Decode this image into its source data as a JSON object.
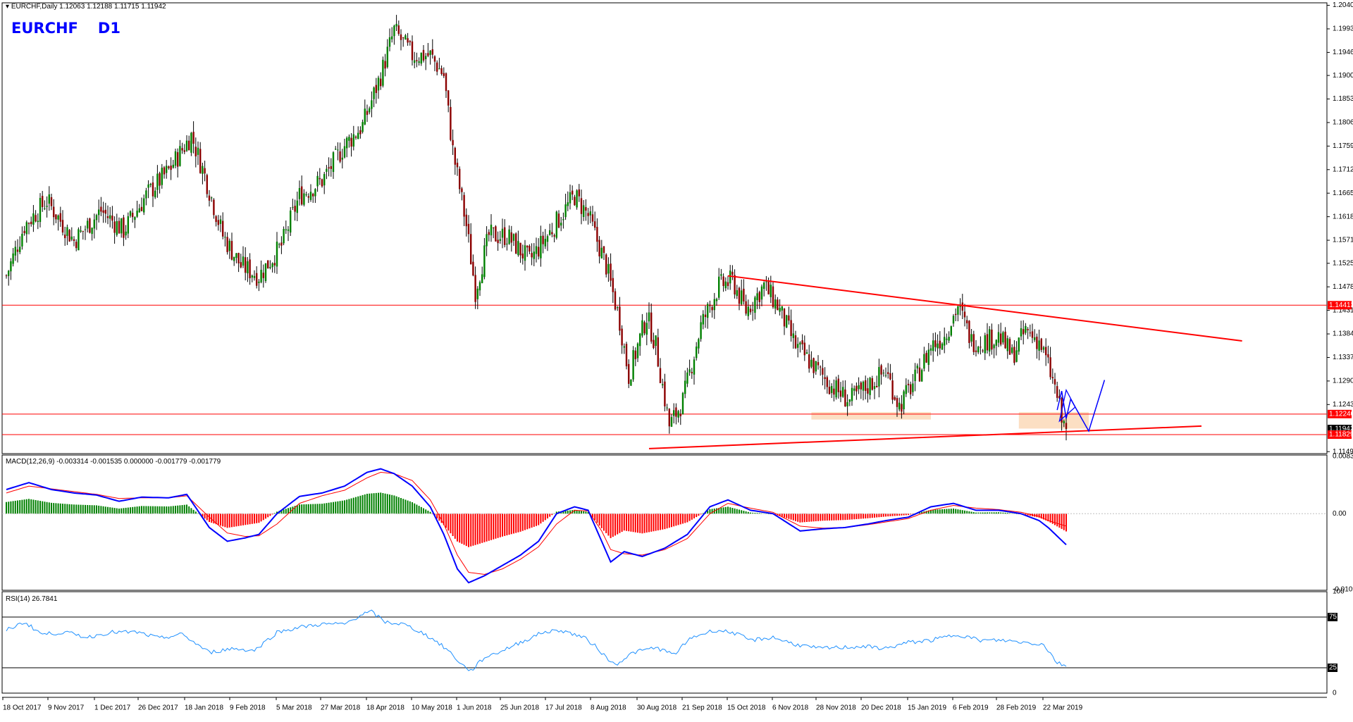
{
  "header": {
    "ohlc_text": "EURCHF,Daily  1.12063 1.12188 1.11715 1.11942",
    "symbol": "EURCHF",
    "timeframe": "D1"
  },
  "colors": {
    "bull": "#008000",
    "bear": "#8b0000",
    "level": "#ff0000",
    "pattern": "#0000ff",
    "zone": "#fbd9b8",
    "macd": "#0000ff",
    "signal": "#ff0000",
    "rsi": "#1e90ff"
  },
  "chart_data": [
    {
      "type": "candlestick",
      "title": "EURCHF D1",
      "x_tick_labels": [
        "18 Oct 2017",
        "9 Nov 2017",
        "1 Dec 2017",
        "26 Dec 2017",
        "18 Jan 2018",
        "9 Feb 2018",
        "5 Mar 2018",
        "27 Mar 2018",
        "18 Apr 2018",
        "10 May 2018",
        "1 Jun 2018",
        "25 Jun 2018",
        "17 Jul 2018",
        "8 Aug 2018",
        "30 Aug 2018",
        "21 Sep 2018",
        "15 Oct 2018",
        "6 Nov 2018",
        "28 Nov 2018",
        "20 Dec 2018",
        "15 Jan 2019",
        "6 Feb 2019",
        "28 Feb 2019",
        "22 Mar 2019"
      ],
      "y_tick_labels": [
        "1.20400",
        "1.19930",
        "1.19460",
        "1.19000",
        "1.18530",
        "1.18060",
        "1.17590",
        "1.17120",
        "1.16650",
        "1.16180",
        "1.15710",
        "1.15250",
        "1.14780",
        "1.14310",
        "1.13840",
        "1.13370",
        "1.12900",
        "1.12430",
        "1.11490"
      ],
      "ylim": [
        1.1145,
        1.2045
      ],
      "price_path": [
        [
          0,
          1.15
        ],
        [
          8,
          1.16
        ],
        [
          18,
          1.165
        ],
        [
          30,
          1.157
        ],
        [
          42,
          1.163
        ],
        [
          52,
          1.159
        ],
        [
          62,
          1.166
        ],
        [
          72,
          1.171
        ],
        [
          82,
          1.178
        ],
        [
          88,
          1.17
        ],
        [
          96,
          1.158
        ],
        [
          104,
          1.152
        ],
        [
          112,
          1.15
        ],
        [
          122,
          1.156
        ],
        [
          130,
          1.166
        ],
        [
          140,
          1.169
        ],
        [
          150,
          1.176
        ],
        [
          158,
          1.18
        ],
        [
          166,
          1.19
        ],
        [
          172,
          1.199
        ],
        [
          180,
          1.194
        ],
        [
          188,
          1.194
        ],
        [
          194,
          1.19
        ],
        [
          198,
          1.175
        ],
        [
          204,
          1.16
        ],
        [
          208,
          1.147
        ],
        [
          214,
          1.158
        ],
        [
          222,
          1.158
        ],
        [
          232,
          1.153
        ],
        [
          240,
          1.158
        ],
        [
          246,
          1.162
        ],
        [
          252,
          1.166
        ],
        [
          258,
          1.162
        ],
        [
          266,
          1.152
        ],
        [
          272,
          1.141
        ],
        [
          276,
          1.13
        ],
        [
          284,
          1.142
        ],
        [
          288,
          1.136
        ],
        [
          294,
          1.12
        ],
        [
          300,
          1.125
        ],
        [
          308,
          1.14
        ],
        [
          316,
          1.148
        ],
        [
          322,
          1.149
        ],
        [
          328,
          1.143
        ],
        [
          336,
          1.148
        ],
        [
          342,
          1.144
        ],
        [
          350,
          1.136
        ],
        [
          358,
          1.132
        ],
        [
          366,
          1.128
        ],
        [
          374,
          1.125
        ],
        [
          382,
          1.128
        ],
        [
          390,
          1.131
        ],
        [
          396,
          1.124
        ],
        [
          404,
          1.13
        ],
        [
          410,
          1.136
        ],
        [
          416,
          1.138
        ],
        [
          422,
          1.144
        ],
        [
          428,
          1.137
        ],
        [
          434,
          1.137
        ],
        [
          440,
          1.138
        ],
        [
          446,
          1.134
        ],
        [
          452,
          1.139
        ],
        [
          458,
          1.137
        ],
        [
          462,
          1.132
        ],
        [
          466,
          1.126
        ],
        [
          468,
          1.121
        ],
        [
          470,
          1.1194
        ]
      ],
      "series": [
        {
          "name": "Resistance 1.14413",
          "values": [
            1.14413
          ]
        },
        {
          "name": "Support 1.12240",
          "values": [
            1.1224
          ]
        },
        {
          "name": "Support 1.11829",
          "values": [
            1.11829
          ]
        }
      ],
      "price_labels": [
        "1.14413",
        "1.12240",
        "1.11942",
        "1.11829"
      ],
      "descending_trendline": [
        [
          320,
          1.15
        ],
        [
          548,
          1.137
        ]
      ],
      "ascending_trendline": [
        [
          285,
          1.1155
        ],
        [
          530,
          1.12
        ]
      ],
      "demand_zones": [
        [
          357,
          410,
          1.1213,
          1.1228
        ],
        [
          449,
          480,
          1.1195,
          1.1228
        ]
      ]
    },
    {
      "type": "line",
      "title": "MACD(12,26,9) -0.003314 -0.001535 0.000000 -0.001779 -0.001779",
      "y_tick_labels": [
        "0.008321",
        "0.00",
        "-0.010983"
      ],
      "ylim": [
        -0.0111,
        0.0085
      ],
      "series": [
        {
          "name": "MACD",
          "path": [
            [
              0,
              0.0035
            ],
            [
              10,
              0.0045
            ],
            [
              20,
              0.0035
            ],
            [
              30,
              0.003
            ],
            [
              40,
              0.0027
            ],
            [
              50,
              0.0018
            ],
            [
              60,
              0.0024
            ],
            [
              72,
              0.0023
            ],
            [
              80,
              0.0028
            ],
            [
              90,
              -0.002
            ],
            [
              98,
              -0.004
            ],
            [
              106,
              -0.0035
            ],
            [
              112,
              -0.003
            ],
            [
              120,
              0.0
            ],
            [
              130,
              0.0025
            ],
            [
              140,
              0.003
            ],
            [
              150,
              0.004
            ],
            [
              160,
              0.006
            ],
            [
              166,
              0.0065
            ],
            [
              172,
              0.0058
            ],
            [
              180,
              0.004
            ],
            [
              188,
              0.001
            ],
            [
              194,
              -0.003
            ],
            [
              200,
              -0.008
            ],
            [
              205,
              -0.01
            ],
            [
              212,
              -0.009
            ],
            [
              220,
              -0.0075
            ],
            [
              228,
              -0.006
            ],
            [
              236,
              -0.004
            ],
            [
              244,
              0.0
            ],
            [
              252,
              0.001
            ],
            [
              258,
              0.0005
            ],
            [
              264,
              -0.004
            ],
            [
              268,
              -0.007
            ],
            [
              274,
              -0.0055
            ],
            [
              282,
              -0.0062
            ],
            [
              292,
              -0.005
            ],
            [
              302,
              -0.003
            ],
            [
              312,
              0.001
            ],
            [
              320,
              0.002
            ],
            [
              330,
              0.0005
            ],
            [
              340,
              0.0
            ],
            [
              352,
              -0.0025
            ],
            [
              362,
              -0.0022
            ],
            [
              372,
              -0.002
            ],
            [
              382,
              -0.0015
            ],
            [
              390,
              -0.001
            ],
            [
              400,
              -0.0005
            ],
            [
              410,
              0.001
            ],
            [
              420,
              0.0015
            ],
            [
              430,
              0.0005
            ],
            [
              440,
              0.0005
            ],
            [
              450,
              0.0
            ],
            [
              458,
              -0.001
            ],
            [
              462,
              -0.002
            ],
            [
              470,
              -0.0045
            ]
          ]
        },
        {
          "name": "Signal",
          "path": [
            [
              0,
              0.003
            ],
            [
              10,
              0.004
            ],
            [
              20,
              0.0036
            ],
            [
              30,
              0.0032
            ],
            [
              40,
              0.0028
            ],
            [
              50,
              0.0022
            ],
            [
              60,
              0.0023
            ],
            [
              72,
              0.0023
            ],
            [
              80,
              0.0026
            ],
            [
              90,
              -0.0005
            ],
            [
              98,
              -0.0028
            ],
            [
              106,
              -0.0033
            ],
            [
              112,
              -0.0032
            ],
            [
              120,
              -0.0015
            ],
            [
              130,
              0.0015
            ],
            [
              140,
              0.0026
            ],
            [
              150,
              0.0034
            ],
            [
              160,
              0.0052
            ],
            [
              166,
              0.006
            ],
            [
              172,
              0.0058
            ],
            [
              180,
              0.0048
            ],
            [
              188,
              0.002
            ],
            [
              194,
              -0.0015
            ],
            [
              200,
              -0.006
            ],
            [
              205,
              -0.0085
            ],
            [
              212,
              -0.0088
            ],
            [
              220,
              -0.008
            ],
            [
              228,
              -0.0066
            ],
            [
              236,
              -0.0048
            ],
            [
              244,
              -0.0015
            ],
            [
              252,
              0.0005
            ],
            [
              258,
              0.0004
            ],
            [
              264,
              -0.0025
            ],
            [
              268,
              -0.0052
            ],
            [
              274,
              -0.0058
            ],
            [
              282,
              -0.006
            ],
            [
              292,
              -0.0052
            ],
            [
              302,
              -0.0036
            ],
            [
              312,
              0.0
            ],
            [
              320,
              0.0015
            ],
            [
              330,
              0.0008
            ],
            [
              340,
              0.0002
            ],
            [
              352,
              -0.0018
            ],
            [
              362,
              -0.0021
            ],
            [
              372,
              -0.002
            ],
            [
              382,
              -0.0016
            ],
            [
              390,
              -0.0012
            ],
            [
              400,
              -0.0007
            ],
            [
              410,
              0.0005
            ],
            [
              420,
              0.0012
            ],
            [
              430,
              0.0008
            ],
            [
              440,
              0.0006
            ],
            [
              450,
              0.0002
            ],
            [
              458,
              -0.0004
            ],
            [
              462,
              -0.001
            ],
            [
              470,
              -0.0018
            ]
          ]
        }
      ]
    },
    {
      "type": "line",
      "title": "RSI(14) 26.7841",
      "y_tick_labels": [
        "100",
        "75",
        "25",
        "0"
      ],
      "ylim": [
        0,
        100
      ],
      "series": [
        {
          "name": "RSI(14)",
          "path": [
            [
              0,
              62
            ],
            [
              8,
              70
            ],
            [
              16,
              58
            ],
            [
              26,
              60
            ],
            [
              36,
              55
            ],
            [
              46,
              60
            ],
            [
              58,
              60
            ],
            [
              68,
              54
            ],
            [
              78,
              58
            ],
            [
              90,
              40
            ],
            [
              100,
              44
            ],
            [
              110,
              42
            ],
            [
              120,
              60
            ],
            [
              130,
              65
            ],
            [
              140,
              68
            ],
            [
              150,
              68
            ],
            [
              158,
              78
            ],
            [
              162,
              80
            ],
            [
              168,
              70
            ],
            [
              176,
              68
            ],
            [
              184,
              60
            ],
            [
              190,
              52
            ],
            [
              196,
              42
            ],
            [
              202,
              28
            ],
            [
              206,
              22
            ],
            [
              212,
              35
            ],
            [
              220,
              42
            ],
            [
              230,
              52
            ],
            [
              238,
              60
            ],
            [
              246,
              62
            ],
            [
              256,
              55
            ],
            [
              262,
              45
            ],
            [
              266,
              35
            ],
            [
              270,
              28
            ],
            [
              278,
              40
            ],
            [
              288,
              45
            ],
            [
              296,
              38
            ],
            [
              304,
              55
            ],
            [
              314,
              62
            ],
            [
              322,
              60
            ],
            [
              330,
              52
            ],
            [
              340,
              55
            ],
            [
              350,
              48
            ],
            [
              360,
              44
            ],
            [
              370,
              45
            ],
            [
              380,
              46
            ],
            [
              390,
              44
            ],
            [
              400,
              50
            ],
            [
              410,
              52
            ],
            [
              422,
              58
            ],
            [
              432,
              52
            ],
            [
              442,
              52
            ],
            [
              452,
              50
            ],
            [
              460,
              48
            ],
            [
              466,
              30
            ],
            [
              470,
              27
            ]
          ]
        }
      ]
    }
  ]
}
